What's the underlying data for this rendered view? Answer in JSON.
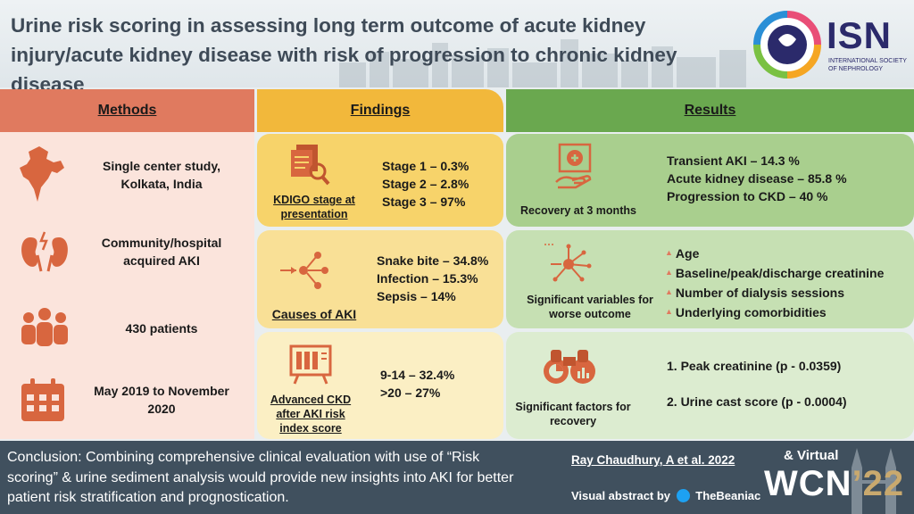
{
  "header": {
    "title": "Urine risk scoring in assessing long term outcome of acute kidney injury/acute kidney disease with risk of progression to chronic kidney disease",
    "logo_text": "ISN",
    "logo_subtitle": "INTERNATIONAL SOCIETY OF NEPHROLOGY"
  },
  "columns": {
    "methods": "Methods",
    "findings": "Findings",
    "results": "Results"
  },
  "methods": [
    {
      "icon": "india-map-icon",
      "text": "Single center study, Kolkata, India"
    },
    {
      "icon": "kidneys-icon",
      "text": "Community/hospital acquired AKI"
    },
    {
      "icon": "people-group-icon",
      "text": "430 patients"
    },
    {
      "icon": "calendar-icon",
      "text": "May 2019 to November 2020"
    }
  ],
  "findings": [
    {
      "icon": "documents-search-icon",
      "label": "KDIGO stage at presentation",
      "values": [
        "Stage 1 – 0.3%",
        "Stage 2 – 2.8%",
        "Stage 3 – 97%"
      ]
    },
    {
      "icon": "network-cause-icon",
      "label": "Causes of AKI",
      "values": [
        "Snake bite – 34.8%",
        "Infection – 15.3%",
        "Sepsis – 14%"
      ]
    },
    {
      "icon": "risk-index-board-icon",
      "label": "Advanced CKD after AKI risk index score",
      "values": [
        "9-14 – 32.4%",
        ">20 – 27%"
      ]
    }
  ],
  "results": [
    {
      "icon": "recovery-hand-icon",
      "label": "Recovery at 3 months",
      "values": [
        "Transient AKI – 14.3 %",
        "Acute kidney disease – 85.8 %",
        "Progression to CKD  – 40 %"
      ]
    },
    {
      "icon": "variables-hub-icon",
      "label": "Significant variables for worse outcome",
      "values": [
        "Age",
        "Baseline/peak/discharge creatinine",
        "Number of dialysis sessions",
        "Underlying comorbidities"
      ]
    },
    {
      "icon": "binoculars-chart-icon",
      "label": "Significant factors for recovery",
      "values": [
        "1. Peak creatinine (p - 0.0359)",
        "2. Urine cast score (p - 0.0004)"
      ]
    }
  ],
  "footer": {
    "conclusion": "Conclusion: Combining comprehensive clinical evaluation with use of “Risk scoring” & urine sediment analysis would provide new insights into AKI for better patient risk stratification and prognostication.",
    "citation": "Ray Chaudhury, A et al. 2022",
    "visual_abstract_by": "Visual abstract by",
    "twitter_handle": "TheBeaniac",
    "event_virtual": "& Virtual",
    "event_name": "WCN",
    "event_year": "’22"
  }
}
